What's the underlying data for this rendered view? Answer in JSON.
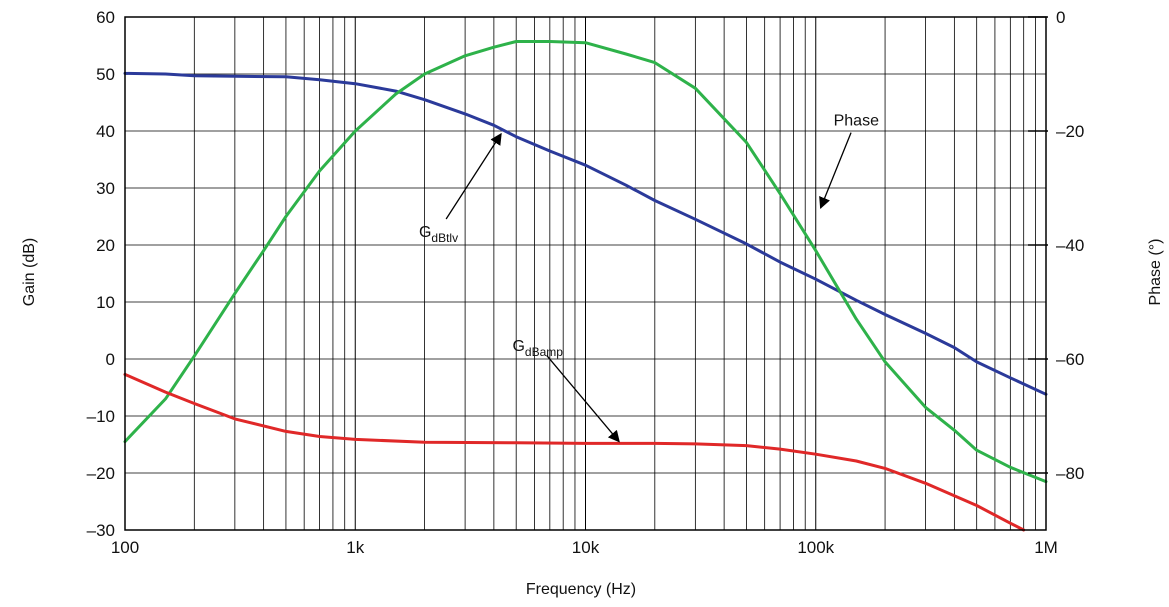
{
  "chart_data": {
    "type": "line",
    "title": "",
    "xlabel": "Frequency (Hz)",
    "ylabel_left": "Gain (dB)",
    "ylabel_right": "Phase (°)",
    "x_scale": "log",
    "xlim": [
      100,
      1000000
    ],
    "ylim_left": [
      -30,
      60
    ],
    "ylim_right": [
      -90,
      0
    ],
    "grid": true,
    "legend": "none",
    "x_tick_values": [
      100,
      1000,
      10000,
      100000,
      1000000
    ],
    "x_tick_labels": [
      "100",
      "1k",
      "10k",
      "100k",
      "1M"
    ],
    "y_left_tick_values": [
      60,
      50,
      40,
      30,
      20,
      10,
      0,
      -10,
      -20,
      -30
    ],
    "y_left_tick_labels": [
      "60",
      "50",
      "40",
      "30",
      "20",
      "10",
      "0",
      "–10",
      "–20",
      "–30"
    ],
    "y_right_tick_values": [
      0,
      -20,
      -40,
      -60,
      -80
    ],
    "y_right_tick_labels": [
      "0",
      "–20",
      "–40",
      "–60",
      "–80"
    ],
    "series": [
      {
        "name": "GdBtlv",
        "axis": "left",
        "color": "#2b3a9a",
        "x": [
          100,
          150,
          200,
          300,
          500,
          700,
          1000,
          1500,
          2000,
          3000,
          4000,
          5000,
          7000,
          10000,
          15000,
          20000,
          30000,
          50000,
          70000,
          100000,
          150000,
          200000,
          300000,
          400000,
          500000,
          700000,
          1000000
        ],
        "y": [
          50.1,
          50.0,
          49.7,
          49.6,
          49.5,
          49.0,
          48.3,
          47.0,
          45.5,
          43.0,
          41.0,
          39.0,
          36.5,
          34.0,
          30.5,
          27.8,
          24.5,
          20.2,
          17.0,
          14.0,
          10.3,
          7.8,
          4.5,
          2.0,
          -0.5,
          -3.3,
          -6.2
        ]
      },
      {
        "name": "Phase",
        "axis": "right",
        "color": "#2eb24a",
        "x": [
          100,
          150,
          200,
          300,
          400,
          500,
          700,
          1000,
          1500,
          2000,
          3000,
          4000,
          5000,
          7000,
          10000,
          15000,
          20000,
          30000,
          50000,
          70000,
          100000,
          150000,
          200000,
          300000,
          400000,
          500000,
          700000,
          1000000
        ],
        "y": [
          -74.5,
          -67.0,
          -59.5,
          -48.5,
          -41.0,
          -35.0,
          -27.0,
          -20.0,
          -13.5,
          -10.0,
          -6.8,
          -5.3,
          -4.3,
          -4.3,
          -4.5,
          -6.5,
          -8.0,
          -12.5,
          -22.0,
          -31.0,
          -41.0,
          -53.0,
          -60.5,
          -68.5,
          -72.5,
          -76.0,
          -79.0,
          -81.5
        ]
      },
      {
        "name": "GdBamp",
        "axis": "left",
        "color": "#e02828",
        "x": [
          100,
          150,
          200,
          300,
          500,
          700,
          1000,
          2000,
          5000,
          10000,
          20000,
          30000,
          50000,
          70000,
          100000,
          150000,
          200000,
          300000,
          500000,
          700000,
          800000
        ],
        "y": [
          -2.7,
          -5.8,
          -7.8,
          -10.5,
          -12.7,
          -13.6,
          -14.1,
          -14.6,
          -14.7,
          -14.8,
          -14.8,
          -14.9,
          -15.2,
          -15.8,
          -16.7,
          -17.9,
          -19.2,
          -21.8,
          -25.7,
          -28.8,
          -30.0
        ]
      }
    ],
    "annotations": [
      {
        "text": "Phase",
        "series": "Phase",
        "label_x": 150000,
        "label_y": -18,
        "label_axis": "right",
        "arrow_to_x": 105000,
        "arrow_to_y": -33.5,
        "arrow_to_axis": "right"
      },
      {
        "text": "G",
        "subscript": "dBtlv",
        "series": "GdBtlv",
        "label_x": 2300,
        "label_y": 22.5,
        "label_axis": "left",
        "arrow_to_x": 4300,
        "arrow_to_y": 39.5,
        "arrow_to_axis": "left"
      },
      {
        "text": "G",
        "subscript": "dBamp",
        "series": "GdBamp",
        "label_x": 6200,
        "label_y": 2.5,
        "label_axis": "left",
        "arrow_to_x": 14000,
        "arrow_to_y": -14.5,
        "arrow_to_axis": "left"
      }
    ]
  }
}
